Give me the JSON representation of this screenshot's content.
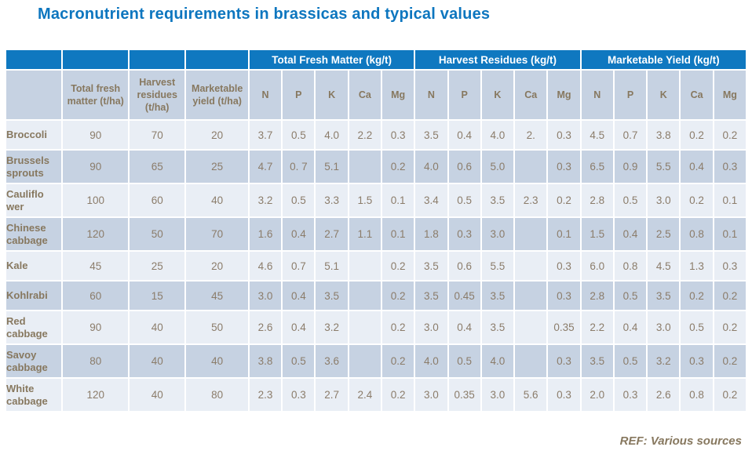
{
  "slide": {
    "title": "Macronutrient requirements in brassicas and typical values",
    "footer_ref": "REF: Various sources"
  },
  "colors": {
    "header_blue": "#0f78c0",
    "title_blue": "#0d76bf",
    "row_light": "#e9eef5",
    "row_dark": "#c6d2e2",
    "table_text_brown": "#8b7c6a",
    "label_text_brown": "#87785f"
  },
  "chart_data": {
    "type": "table",
    "title": "Macronutrient requirements in brassicas and typical values",
    "group_headers": [
      {
        "label": "",
        "span": 1
      },
      {
        "label": "",
        "span": 1
      },
      {
        "label": "",
        "span": 1
      },
      {
        "label": "",
        "span": 1
      },
      {
        "label": "Total Fresh Matter (kg/t)",
        "span": 5
      },
      {
        "label": "Harvest Residues (kg/t)",
        "span": 5
      },
      {
        "label": "Marketable Yield (kg/t)",
        "span": 5
      }
    ],
    "sub_headers": [
      "",
      "Total fresh matter (t/ha)",
      "Harvest residues (t/ha)",
      "Marketable yield (t/ha)",
      "N",
      "P",
      "K",
      "Ca",
      "Mg",
      "N",
      "P",
      "K",
      "Ca",
      "Mg",
      "N",
      "P",
      "K",
      "Ca",
      "Mg"
    ],
    "rows": [
      {
        "crop": "Broccoli",
        "values": [
          "90",
          "70",
          "20",
          "3.7",
          "0.5",
          "4.0",
          "2.2",
          "0.3",
          "3.5",
          "0.4",
          "4.0",
          "2.",
          "0.3",
          "4.5",
          "0.7",
          "3.8",
          "0.2",
          "0.2"
        ]
      },
      {
        "crop": "Brussels sprouts",
        "values": [
          "90",
          "65",
          "25",
          "4.7",
          "0. 7",
          "5.1",
          "",
          "0.2",
          "4.0",
          "0.6",
          "5.0",
          "",
          "0.3",
          "6.5",
          "0.9",
          "5.5",
          "0.4",
          "0.3"
        ]
      },
      {
        "crop": "Cauliflo wer",
        "values": [
          "100",
          "60",
          "40",
          "3.2",
          "0.5",
          "3.3",
          "1.5",
          "0.1",
          "3.4",
          "0.5",
          "3.5",
          "2.3",
          "0.2",
          "2.8",
          "0.5",
          "3.0",
          "0.2",
          "0.1"
        ]
      },
      {
        "crop": "Chinese cabbage",
        "values": [
          "120",
          "50",
          "70",
          "1.6",
          "0.4",
          "2.7",
          "1.1",
          "0.1",
          "1.8",
          "0.3",
          "3.0",
          "",
          "0.1",
          "1.5",
          "0.4",
          "2.5",
          "0.8",
          "0.1"
        ]
      },
      {
        "crop": "Kale",
        "values": [
          "45",
          "25",
          "20",
          "4.6",
          "0.7",
          "5.1",
          "",
          "0.2",
          "3.5",
          "0.6",
          "5.5",
          "",
          "0.3",
          "6.0",
          "0.8",
          "4.5",
          "1.3",
          "0.3"
        ]
      },
      {
        "crop": "Kohlrabi",
        "values": [
          "60",
          "15",
          "45",
          "3.0",
          "0.4",
          "3.5",
          "",
          "0.2",
          "3.5",
          "0.45",
          "3.5",
          "",
          "0.3",
          "2.8",
          "0.5",
          "3.5",
          "0.2",
          "0.2"
        ]
      },
      {
        "crop": "Red cabbage",
        "values": [
          "90",
          "40",
          "50",
          "2.6",
          "0.4",
          "3.2",
          "",
          "0.2",
          "3.0",
          "0.4",
          "3.5",
          "",
          "0.35",
          "2.2",
          "0.4",
          "3.0",
          "0.5",
          "0.2"
        ]
      },
      {
        "crop": "Savoy cabbage",
        "values": [
          "80",
          "40",
          "40",
          "3.8",
          "0.5",
          "3.6",
          "",
          "0.2",
          "4.0",
          "0.5",
          "4.0",
          "",
          "0.3",
          "3.5",
          "0.5",
          "3.2",
          "0.3",
          "0.2"
        ]
      },
      {
        "crop": "White cabbage",
        "values": [
          "120",
          "40",
          "80",
          "2.3",
          "0.3",
          "2.7",
          "2.4",
          "0.2",
          "3.0",
          "0.35",
          "3.0",
          "5.6",
          "0.3",
          "2.0",
          "0.3",
          "2.6",
          "0.8",
          "0.2"
        ]
      }
    ]
  }
}
